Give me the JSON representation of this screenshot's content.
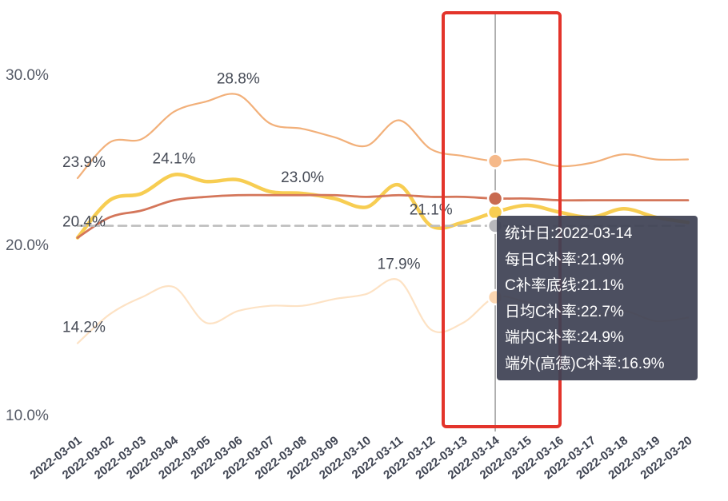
{
  "chart_data": {
    "type": "line",
    "x": [
      "2022-03-01",
      "2022-03-02",
      "2022-03-03",
      "2022-03-04",
      "2022-03-05",
      "2022-03-06",
      "2022-03-07",
      "2022-03-08",
      "2022-03-09",
      "2022-03-10",
      "2022-03-11",
      "2022-03-12",
      "2022-03-13",
      "2022-03-14",
      "2022-03-15",
      "2022-03-16",
      "2022-03-17",
      "2022-03-18",
      "2022-03-19",
      "2022-03-20"
    ],
    "y_ticks": [
      "30.0%",
      "20.0%",
      "10.0%"
    ],
    "ylim": [
      10,
      30
    ],
    "series": [
      {
        "key": "outer_high",
        "name": "端内C补率",
        "color": "#f2b07a",
        "width": 2.2,
        "values": [
          23.9,
          26.0,
          26.2,
          27.8,
          28.4,
          28.8,
          27.1,
          26.8,
          26.3,
          25.8,
          27.3,
          25.6,
          25.2,
          24.9,
          25.0,
          24.6,
          24.8,
          25.3,
          25.0,
          25.0
        ]
      },
      {
        "key": "daily",
        "name": "每日C补率",
        "color": "#f7cd52",
        "width": 4.5,
        "values": [
          20.4,
          22.6,
          23.0,
          24.1,
          23.7,
          23.8,
          23.1,
          23.0,
          22.7,
          22.2,
          23.5,
          21.1,
          21.3,
          21.9,
          22.3,
          21.9,
          21.6,
          22.1,
          21.6,
          21.3
        ]
      },
      {
        "key": "avg",
        "name": "日均C补率",
        "color": "#d4765a",
        "width": 2.8,
        "values": [
          20.4,
          21.6,
          22.0,
          22.6,
          22.8,
          22.9,
          22.9,
          22.9,
          22.9,
          22.8,
          22.9,
          22.8,
          22.8,
          22.7,
          22.7,
          22.6,
          22.6,
          22.6,
          22.6,
          22.6
        ]
      },
      {
        "key": "baseline",
        "name": "C补率底线",
        "color": "#bdbdbd",
        "width": 2.6,
        "dashed": true,
        "values": [
          21.1,
          21.1,
          21.1,
          21.1,
          21.1,
          21.1,
          21.1,
          21.1,
          21.1,
          21.1,
          21.1,
          21.1,
          21.1,
          21.1,
          21.1,
          21.1,
          21.1,
          21.1,
          21.1,
          21.1
        ]
      },
      {
        "key": "outer_low",
        "name": "端外(高德)C补率",
        "color": "#fde2c4",
        "width": 2.2,
        "values": [
          14.2,
          15.9,
          16.9,
          17.5,
          15.4,
          16.1,
          16.4,
          16.4,
          16.8,
          17.1,
          17.9,
          15.0,
          15.4,
          16.9,
          16.6,
          16.2,
          15.8,
          16.1,
          15.5,
          15.7
        ]
      }
    ],
    "data_labels": [
      {
        "series": "outer_high",
        "index": 0,
        "text": "23.9%"
      },
      {
        "series": "outer_high",
        "index": 5,
        "text": "28.8%"
      },
      {
        "series": "daily",
        "index": 0,
        "text": "20.4%"
      },
      {
        "series": "daily",
        "index": 3,
        "text": "24.1%"
      },
      {
        "series": "daily",
        "index": 7,
        "text": "23.0%"
      },
      {
        "series": "daily",
        "index": 11,
        "text": "21.1%"
      },
      {
        "series": "outer_low",
        "index": 0,
        "text": "14.2%"
      },
      {
        "series": "outer_low",
        "index": 10,
        "text": "17.9%"
      }
    ],
    "hover_index": 13,
    "grid": false,
    "legend": "none"
  },
  "tooltip": {
    "date": "统计日:2022-03-14",
    "daily": "每日C补率:21.9%",
    "baseline": "C补率底线:21.1%",
    "avg": "日均C补率:22.7%",
    "outer_high": "端内C补率:24.9%",
    "outer_low": "端外(高德)C补率:16.9%"
  },
  "colors": {
    "highlight_box": "#e3342b",
    "tooltip_bg": "#3e4254"
  }
}
